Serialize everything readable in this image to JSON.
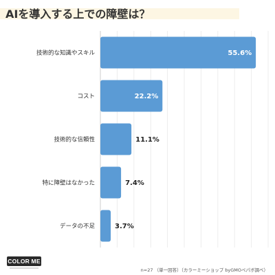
{
  "header": {
    "title": "AIを導入する上での障壁は？"
  },
  "chart_data": {
    "type": "bar",
    "orientation": "horizontal",
    "categories": [
      "技術的な知識やスキル",
      "コスト",
      "技術的な信頼性",
      "特に障壁はなかった",
      "データの不足"
    ],
    "values": [
      55.6,
      22.2,
      11.1,
      7.4,
      3.7
    ],
    "value_labels": [
      "55.6%",
      "22.2%",
      "11.1%",
      "7.4%",
      "3.7%"
    ],
    "xlim": [
      0,
      60
    ],
    "bar_color": "#5b9bd5",
    "grid": true
  },
  "footer": {
    "source": "n=27 （単一回答）（カラーミーショップ byGMOペパボ調べ）",
    "logo_text": "COLOR ME"
  }
}
